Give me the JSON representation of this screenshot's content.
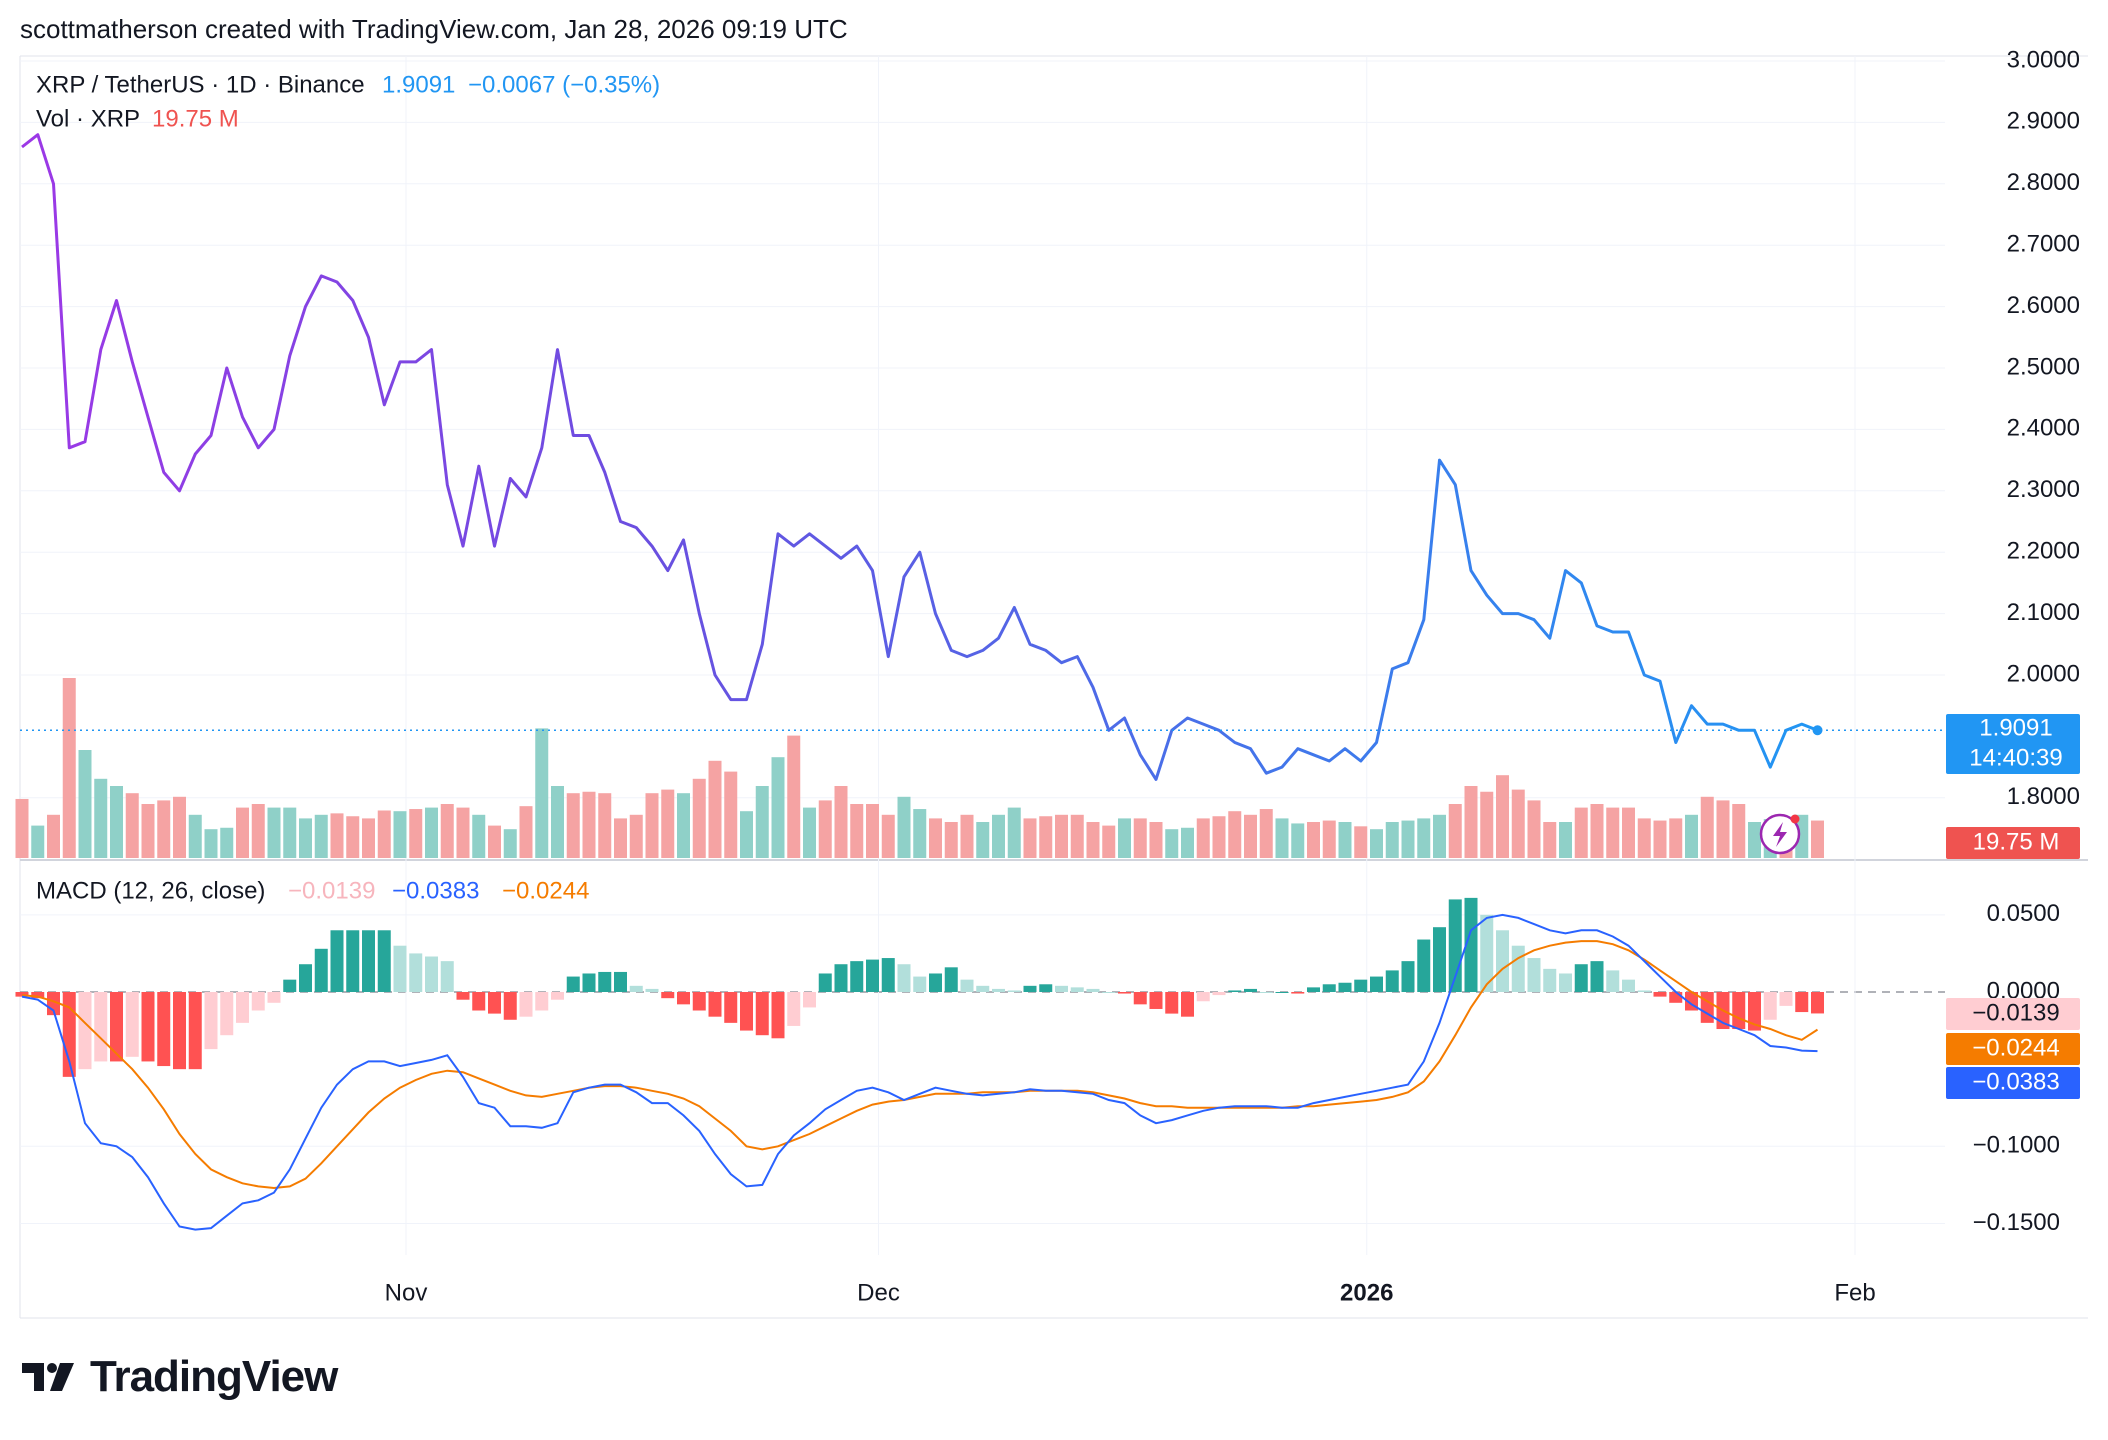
{
  "header": {
    "credit": "scottmatherson created with TradingView.com, Jan 28, 2026 09:19 UTC"
  },
  "brand": {
    "logo_text": "TradingView"
  },
  "legend": {
    "symbol": "XRP / TetherUS · 1D · Binance",
    "price": "1.9091",
    "change": "−0.0067 (−0.35%)",
    "vol_label": "Vol · XRP",
    "vol_value": "19.75 M",
    "macd_label": "MACD (12, 26, close)",
    "macd_hist": "−0.0139",
    "macd_line": "−0.0383",
    "macd_signal": "−0.0244"
  },
  "price_axis": {
    "ticks": [
      "3.0000",
      "2.9000",
      "2.8000",
      "2.7000",
      "2.6000",
      "2.5000",
      "2.4000",
      "2.3000",
      "2.2000",
      "2.1000",
      "2.0000",
      "1.8000"
    ],
    "tick_values": [
      3.0,
      2.9,
      2.8,
      2.7,
      2.6,
      2.5,
      2.4,
      2.3,
      2.2,
      2.1,
      2.0,
      1.8
    ],
    "last_price_label": "1.9091",
    "countdown_label": "14:40:39",
    "volume_label": "19.75 M"
  },
  "macd_axis": {
    "ticks": [
      "0.0500",
      "0.0000",
      "−0.1000",
      "−0.1500"
    ],
    "tick_values": [
      0.05,
      0.0,
      -0.1,
      -0.15
    ],
    "hist_label": "−0.0139",
    "signal_label": "−0.0244",
    "macd_label": "−0.0383"
  },
  "time_axis": {
    "labels": [
      "Nov",
      "Dec",
      "2026",
      "Feb"
    ]
  },
  "colors": {
    "price_line_start": "#9c38e6",
    "price_line_end": "#2196f3",
    "vol_up": "#8fd0c8",
    "vol_down": "#f5a3a3",
    "macd_line": "#2962ff",
    "signal_line": "#f57c00",
    "hist_up_strong": "#26a69a",
    "hist_up_weak": "#b2dfdb",
    "hist_down_strong": "#ff5252",
    "hist_down_weak": "#ffcdd2",
    "legend_price": "#2196f3",
    "legend_vol": "#ef5350"
  },
  "chart_data": {
    "type": "line",
    "ylim": [
      1.75,
      3.0
    ],
    "macd_ylim": [
      -0.17,
      0.07
    ],
    "x_label_days": {
      "Nov": 24,
      "Dec": 54,
      "2026": 85,
      "Feb": 116
    },
    "dates_note_removed": "",
    "close": [
      2.86,
      2.88,
      2.8,
      2.37,
      2.38,
      2.53,
      2.61,
      2.51,
      2.42,
      2.33,
      2.3,
      2.36,
      2.39,
      2.5,
      2.42,
      2.37,
      2.4,
      2.52,
      2.6,
      2.65,
      2.64,
      2.61,
      2.55,
      2.44,
      2.51,
      2.51,
      2.53,
      2.31,
      2.21,
      2.34,
      2.21,
      2.32,
      2.29,
      2.37,
      2.53,
      2.39,
      2.39,
      2.33,
      2.25,
      2.24,
      2.21,
      2.17,
      2.22,
      2.1,
      2.0,
      1.96,
      1.96,
      2.05,
      2.23,
      2.21,
      2.23,
      2.21,
      2.19,
      2.21,
      2.17,
      2.03,
      2.16,
      2.2,
      2.1,
      2.04,
      2.03,
      2.04,
      2.06,
      2.11,
      2.05,
      2.04,
      2.02,
      2.03,
      1.98,
      1.91,
      1.93,
      1.87,
      1.83,
      1.91,
      1.93,
      1.92,
      1.91,
      1.89,
      1.88,
      1.84,
      1.85,
      1.88,
      1.87,
      1.86,
      1.88,
      1.86,
      1.89,
      2.01,
      2.02,
      2.09,
      2.35,
      2.31,
      2.17,
      2.13,
      2.1,
      2.1,
      2.09,
      2.06,
      2.17,
      2.15,
      2.08,
      2.07,
      2.07,
      2.0,
      1.99,
      1.89,
      1.95,
      1.92,
      1.92,
      1.91,
      1.91,
      1.85,
      1.91,
      1.92,
      1.91
    ],
    "volume": [
      82,
      45,
      60,
      250,
      150,
      110,
      100,
      90,
      75,
      80,
      85,
      60,
      40,
      42,
      70,
      75,
      70,
      70,
      55,
      60,
      62,
      58,
      55,
      66,
      65,
      68,
      70,
      75,
      70,
      60,
      45,
      40,
      72,
      180,
      100,
      90,
      92,
      90,
      55,
      60,
      90,
      95,
      90,
      110,
      135,
      120,
      65,
      100,
      140,
      170,
      70,
      80,
      100,
      75,
      75,
      60,
      85,
      68,
      55,
      50,
      60,
      50,
      60,
      70,
      55,
      58,
      60,
      60,
      50,
      45,
      55,
      55,
      50,
      40,
      42,
      55,
      58,
      65,
      60,
      68,
      55,
      48,
      50,
      52,
      50,
      44,
      40,
      50,
      52,
      55,
      60,
      75,
      100,
      92,
      115,
      95,
      80,
      50,
      50,
      70,
      75,
      70,
      70,
      55,
      52,
      55,
      60,
      85,
      80,
      75,
      50,
      54,
      55,
      60,
      52
    ],
    "volume_up": [
      false,
      true,
      false,
      false,
      true,
      true,
      true,
      false,
      false,
      false,
      false,
      true,
      true,
      true,
      false,
      false,
      true,
      true,
      true,
      true,
      false,
      false,
      false,
      false,
      true,
      false,
      true,
      false,
      false,
      true,
      false,
      true,
      false,
      true,
      true,
      false,
      false,
      false,
      false,
      false,
      false,
      false,
      true,
      false,
      false,
      false,
      true,
      true,
      true,
      false,
      true,
      false,
      false,
      false,
      false,
      false,
      true,
      true,
      false,
      false,
      false,
      true,
      true,
      true,
      false,
      false,
      false,
      false,
      false,
      false,
      true,
      false,
      false,
      true,
      true,
      false,
      false,
      false,
      false,
      false,
      true,
      true,
      false,
      false,
      true,
      false,
      true,
      true,
      true,
      true,
      true,
      false,
      false,
      false,
      false,
      false,
      false,
      false,
      true,
      false,
      false,
      false,
      false,
      false,
      false,
      false,
      true,
      false,
      false,
      false,
      true,
      true,
      false,
      true,
      false
    ],
    "macd": [
      -0.003,
      -0.005,
      -0.012,
      -0.045,
      -0.085,
      -0.098,
      -0.1,
      -0.107,
      -0.12,
      -0.137,
      -0.152,
      -0.154,
      -0.153,
      -0.145,
      -0.137,
      -0.135,
      -0.13,
      -0.115,
      -0.095,
      -0.075,
      -0.06,
      -0.05,
      -0.045,
      -0.045,
      -0.048,
      -0.046,
      -0.044,
      -0.041,
      -0.055,
      -0.072,
      -0.075,
      -0.087,
      -0.087,
      -0.088,
      -0.085,
      -0.065,
      -0.062,
      -0.06,
      -0.06,
      -0.065,
      -0.072,
      -0.072,
      -0.08,
      -0.09,
      -0.105,
      -0.118,
      -0.126,
      -0.125,
      -0.105,
      -0.093,
      -0.085,
      -0.076,
      -0.07,
      -0.064,
      -0.062,
      -0.065,
      -0.07,
      -0.066,
      -0.062,
      -0.064,
      -0.066,
      -0.067,
      -0.066,
      -0.065,
      -0.063,
      -0.064,
      -0.064,
      -0.065,
      -0.066,
      -0.07,
      -0.072,
      -0.08,
      -0.085,
      -0.083,
      -0.08,
      -0.077,
      -0.075,
      -0.074,
      -0.074,
      -0.074,
      -0.075,
      -0.075,
      -0.072,
      -0.07,
      -0.068,
      -0.066,
      -0.064,
      -0.062,
      -0.06,
      -0.045,
      -0.02,
      0.01,
      0.04,
      0.048,
      0.05,
      0.048,
      0.044,
      0.04,
      0.038,
      0.04,
      0.04,
      0.036,
      0.03,
      0.02,
      0.01,
      0.0,
      -0.008,
      -0.014,
      -0.02,
      -0.024,
      -0.028,
      -0.035,
      -0.036,
      -0.038,
      -0.0383
    ],
    "signal": [
      -0.002,
      -0.003,
      -0.006,
      -0.01,
      -0.02,
      -0.03,
      -0.04,
      -0.05,
      -0.062,
      -0.076,
      -0.092,
      -0.105,
      -0.115,
      -0.12,
      -0.124,
      -0.126,
      -0.127,
      -0.126,
      -0.121,
      -0.111,
      -0.1,
      -0.089,
      -0.078,
      -0.069,
      -0.062,
      -0.057,
      -0.053,
      -0.051,
      -0.052,
      -0.056,
      -0.06,
      -0.064,
      -0.067,
      -0.068,
      -0.066,
      -0.064,
      -0.062,
      -0.061,
      -0.061,
      -0.062,
      -0.064,
      -0.066,
      -0.069,
      -0.074,
      -0.082,
      -0.09,
      -0.1,
      -0.102,
      -0.1,
      -0.096,
      -0.092,
      -0.087,
      -0.082,
      -0.077,
      -0.073,
      -0.071,
      -0.07,
      -0.068,
      -0.066,
      -0.066,
      -0.066,
      -0.065,
      -0.065,
      -0.065,
      -0.064,
      -0.064,
      -0.064,
      -0.064,
      -0.065,
      -0.067,
      -0.069,
      -0.072,
      -0.074,
      -0.074,
      -0.075,
      -0.075,
      -0.075,
      -0.075,
      -0.075,
      -0.075,
      -0.075,
      -0.074,
      -0.074,
      -0.073,
      -0.072,
      -0.071,
      -0.07,
      -0.068,
      -0.065,
      -0.058,
      -0.045,
      -0.028,
      -0.01,
      0.005,
      0.015,
      0.022,
      0.027,
      0.03,
      0.032,
      0.033,
      0.033,
      0.031,
      0.027,
      0.021,
      0.014,
      0.007,
      0.0,
      -0.006,
      -0.012,
      -0.017,
      -0.021,
      -0.024,
      -0.028,
      -0.031,
      -0.0244
    ],
    "hist": [
      -0.003,
      -0.004,
      -0.015,
      -0.055,
      -0.05,
      -0.045,
      -0.045,
      -0.042,
      -0.045,
      -0.048,
      -0.05,
      -0.05,
      -0.037,
      -0.028,
      -0.02,
      -0.012,
      -0.007,
      0.008,
      0.018,
      0.028,
      0.04,
      0.04,
      0.04,
      0.04,
      0.03,
      0.025,
      0.023,
      0.02,
      -0.005,
      -0.012,
      -0.014,
      -0.018,
      -0.016,
      -0.012,
      -0.005,
      0.01,
      0.012,
      0.013,
      0.013,
      0.004,
      0.002,
      -0.004,
      -0.008,
      -0.012,
      -0.016,
      -0.02,
      -0.025,
      -0.028,
      -0.03,
      -0.022,
      -0.01,
      0.012,
      0.018,
      0.02,
      0.021,
      0.022,
      0.018,
      0.01,
      0.012,
      0.016,
      0.008,
      0.004,
      0.002,
      0.001,
      0.004,
      0.005,
      0.004,
      0.003,
      0.002,
      0.0,
      -0.001,
      -0.008,
      -0.011,
      -0.014,
      -0.016,
      -0.006,
      -0.002,
      0.001,
      0.002,
      0.0,
      0.0,
      -0.001,
      0.003,
      0.005,
      0.006,
      0.008,
      0.01,
      0.014,
      0.02,
      0.034,
      0.042,
      0.06,
      0.061,
      0.05,
      0.04,
      0.03,
      0.022,
      0.015,
      0.012,
      0.018,
      0.02,
      0.014,
      0.008,
      0.001,
      -0.003,
      -0.007,
      -0.012,
      -0.02,
      -0.024,
      -0.024,
      -0.025,
      -0.018,
      -0.009,
      -0.013,
      -0.0139
    ]
  }
}
